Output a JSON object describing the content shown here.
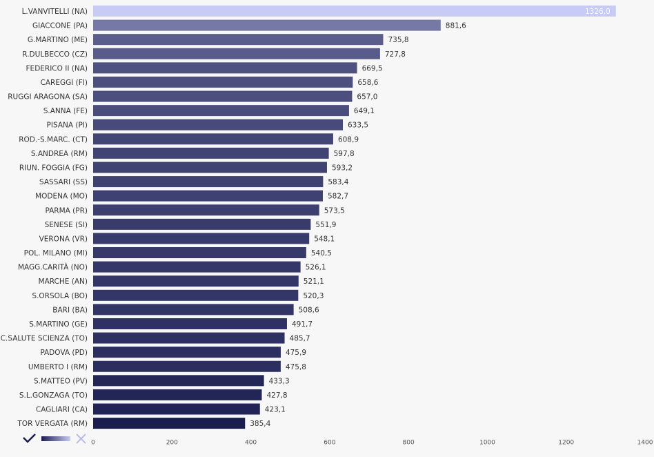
{
  "chart_data": {
    "type": "bar",
    "orientation": "horizontal",
    "categories": [
      "L.VANVITELLI (NA)",
      "GIACCONE (PA)",
      "G.MARTINO (ME)",
      "R.DULBECCO (CZ)",
      "FEDERICO II (NA)",
      "CAREGGI (FI)",
      "RUGGI ARAGONA (SA)",
      "S.ANNA (FE)",
      "PISANA (PI)",
      "ROD.-S.MARC. (CT)",
      "S.ANDREA (RM)",
      "RIUN. FOGGIA (FG)",
      "SASSARI (SS)",
      "MODENA (MO)",
      "PARMA (PR)",
      "SENESE (SI)",
      "VERONA (VR)",
      "POL. MILANO (MI)",
      "MAGG.CARITÀ (NO)",
      "MARCHE (AN)",
      "S.ORSOLA (BO)",
      "BARI (BA)",
      "S.MARTINO (GE)",
      "C.SALUTE SCIENZA (TO)",
      "PADOVA (PD)",
      "UMBERTO I (RM)",
      "S.MATTEO (PV)",
      "S.L.GONZAGA (TO)",
      "CAGLIARI (CA)",
      "TOR VERGATA (RM)"
    ],
    "values": [
      1326.0,
      881.6,
      735.8,
      727.8,
      669.5,
      658.6,
      657.0,
      649.1,
      633.5,
      608.9,
      597.8,
      593.2,
      583.4,
      582.7,
      573.5,
      551.9,
      548.1,
      540.5,
      526.1,
      521.1,
      520.3,
      508.6,
      491.7,
      485.7,
      475.9,
      475.8,
      433.3,
      427.8,
      423.1,
      385.4
    ],
    "value_labels": [
      "1326,0",
      "881,6",
      "735,8",
      "727,8",
      "669,5",
      "658,6",
      "657,0",
      "649,1",
      "633,5",
      "608,9",
      "597,8",
      "593,2",
      "583,4",
      "582,7",
      "573,5",
      "551,9",
      "548,1",
      "540,5",
      "526,1",
      "521,1",
      "520,3",
      "508,6",
      "491,7",
      "485,7",
      "475,9",
      "475,8",
      "433,3",
      "427,8",
      "423,1",
      "385,4"
    ],
    "color_scale": [
      "#1a1d4e",
      "#c8cbf3"
    ],
    "xlim": [
      0,
      1400
    ],
    "xticks": [
      0,
      200,
      400,
      600,
      800,
      1000,
      1200,
      1400
    ],
    "grid": false
  }
}
